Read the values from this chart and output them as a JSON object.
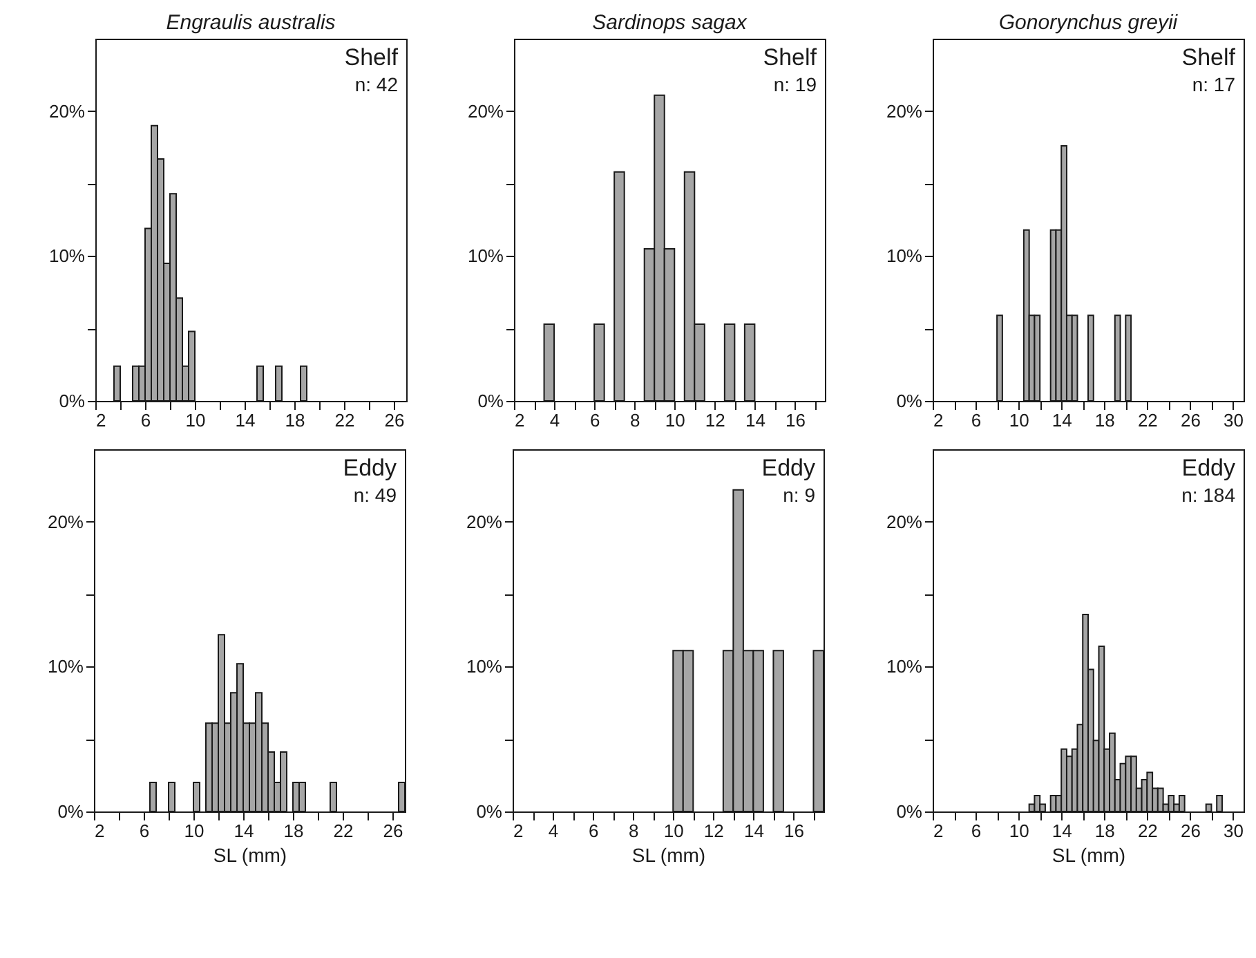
{
  "chart_data": [
    {
      "type": "histogram",
      "title": "Engraulis australis",
      "color": "#a6a6a6",
      "annotations": [
        "Shelf",
        "n: 42"
      ],
      "xlim": [
        2,
        27
      ],
      "ylim": [
        0,
        25
      ],
      "xticks": [
        2,
        {
          "value": 4,
          "label": null
        },
        6,
        {
          "value": 8,
          "label": null
        },
        10,
        {
          "value": 12,
          "label": null
        },
        14,
        {
          "value": 16,
          "label": null
        },
        18,
        {
          "value": 20,
          "label": null
        },
        22,
        {
          "value": 24,
          "label": null
        },
        26
      ],
      "yticks": [
        {
          "value": 0,
          "label": "0%"
        },
        {
          "value": 5,
          "label": null
        },
        {
          "value": 10,
          "label": "10%"
        },
        {
          "value": 15,
          "label": null
        },
        {
          "value": 20,
          "label": "20%"
        }
      ],
      "bins": [
        3.5,
        4,
        4.5,
        5,
        5.5,
        6,
        6.5,
        7,
        7.5,
        8,
        8.5,
        9,
        9.5,
        10,
        10.5,
        11,
        11.5,
        12,
        12.5,
        13,
        13.5,
        14,
        14.5,
        15,
        15.5,
        16,
        16.5,
        17,
        17.5,
        18,
        18.5,
        19
      ],
      "values": [
        2.4,
        0,
        0,
        2.4,
        2.4,
        11.9,
        19.0,
        16.7,
        9.5,
        14.3,
        7.1,
        2.4,
        4.8,
        0,
        0,
        0,
        0,
        0,
        0,
        0,
        0,
        0,
        0,
        2.4,
        0,
        0,
        2.4,
        0,
        0,
        0,
        2.4
      ]
    },
    {
      "type": "histogram",
      "title": "Sardinops sagax",
      "color": "#a6a6a6",
      "annotations": [
        "Shelf",
        "n: 19"
      ],
      "xlim": [
        2,
        17.5
      ],
      "ylim": [
        0,
        25
      ],
      "xticks": [
        2,
        {
          "value": 3,
          "label": null
        },
        4,
        {
          "value": 5,
          "label": null
        },
        6,
        {
          "value": 7,
          "label": null
        },
        8,
        {
          "value": 9,
          "label": null
        },
        10,
        {
          "value": 11,
          "label": null
        },
        12,
        {
          "value": 13,
          "label": null
        },
        14,
        {
          "value": 15,
          "label": null
        },
        16,
        {
          "value": 17,
          "label": null
        }
      ],
      "yticks": [
        {
          "value": 0,
          "label": "0%"
        },
        {
          "value": 5,
          "label": null
        },
        {
          "value": 10,
          "label": "10%"
        },
        {
          "value": 15,
          "label": null
        },
        {
          "value": 20,
          "label": "20%"
        }
      ],
      "bins": [
        3.5,
        4,
        4.5,
        5,
        5.5,
        6,
        6.5,
        7,
        7.5,
        8,
        8.5,
        9,
        9.5,
        10,
        10.5,
        11,
        11.5,
        12,
        12.5,
        13,
        13.5,
        14
      ],
      "values": [
        5.3,
        0,
        0,
        0,
        0,
        5.3,
        0,
        15.8,
        0,
        0,
        10.5,
        21.1,
        10.5,
        0,
        15.8,
        5.3,
        0,
        0,
        5.3,
        0,
        5.3
      ]
    },
    {
      "type": "histogram",
      "title": "Gonorynchus greyii",
      "color": "#a6a6a6",
      "annotations": [
        "Shelf",
        "n: 17"
      ],
      "xlim": [
        2,
        31
      ],
      "ylim": [
        0,
        25
      ],
      "xticks": [
        2,
        {
          "value": 4,
          "label": null
        },
        6,
        {
          "value": 8,
          "label": null
        },
        10,
        {
          "value": 12,
          "label": null
        },
        14,
        {
          "value": 16,
          "label": null
        },
        18,
        {
          "value": 20,
          "label": null
        },
        22,
        {
          "value": 24,
          "label": null
        },
        26,
        {
          "value": 28,
          "label": null
        },
        30
      ],
      "yticks": [
        {
          "value": 0,
          "label": "0%"
        },
        {
          "value": 5,
          "label": null
        },
        {
          "value": 10,
          "label": "10%"
        },
        {
          "value": 15,
          "label": null
        },
        {
          "value": 20,
          "label": "20%"
        }
      ],
      "bins": [
        8,
        8.5,
        9,
        9.5,
        10,
        10.5,
        11,
        11.5,
        12,
        12.5,
        13,
        13.5,
        14,
        14.5,
        15,
        15.5,
        16,
        16.5,
        17,
        17.5,
        18,
        18.5,
        19,
        19.5,
        20,
        20.5
      ],
      "values": [
        5.9,
        0,
        0,
        0,
        0,
        11.8,
        5.9,
        5.9,
        0,
        0,
        11.8,
        11.8,
        17.6,
        5.9,
        5.9,
        0,
        0,
        5.9,
        0,
        0,
        0,
        0,
        5.9,
        0,
        5.9
      ]
    },
    {
      "type": "histogram",
      "xlabel": "SL (mm)",
      "color": "#a6a6a6",
      "annotations": [
        "Eddy",
        "n: 49"
      ],
      "xlim": [
        2,
        27
      ],
      "ylim": [
        0,
        25
      ],
      "xticks": [
        2,
        {
          "value": 4,
          "label": null
        },
        6,
        {
          "value": 8,
          "label": null
        },
        10,
        {
          "value": 12,
          "label": null
        },
        14,
        {
          "value": 16,
          "label": null
        },
        18,
        {
          "value": 20,
          "label": null
        },
        22,
        {
          "value": 24,
          "label": null
        },
        26
      ],
      "yticks": [
        {
          "value": 0,
          "label": "0%"
        },
        {
          "value": 5,
          "label": null
        },
        {
          "value": 10,
          "label": "10%"
        },
        {
          "value": 15,
          "label": null
        },
        {
          "value": 20,
          "label": "20%"
        }
      ],
      "bins": [
        6.5,
        7,
        7.5,
        8,
        8.5,
        9,
        9.5,
        10,
        10.5,
        11,
        11.5,
        12,
        12.5,
        13,
        13.5,
        14,
        14.5,
        15,
        15.5,
        16,
        16.5,
        17,
        17.5,
        18,
        18.5,
        19,
        19.5,
        20,
        20.5,
        21,
        21.5,
        22,
        22.5,
        23,
        23.5,
        24,
        24.5,
        25,
        25.5,
        26,
        26.5,
        27
      ],
      "values": [
        2.0,
        0,
        0,
        2.0,
        0,
        0,
        0,
        2.0,
        0,
        6.1,
        6.1,
        12.2,
        6.1,
        8.2,
        10.2,
        6.1,
        6.1,
        8.2,
        6.1,
        4.1,
        2.0,
        4.1,
        0,
        2.0,
        2.0,
        0,
        0,
        0,
        0,
        2.0,
        0,
        0,
        0,
        0,
        0,
        0,
        0,
        0,
        0,
        0,
        2.0
      ]
    },
    {
      "type": "histogram",
      "xlabel": "SL (mm)",
      "color": "#a6a6a6",
      "annotations": [
        "Eddy",
        "n: 9"
      ],
      "xlim": [
        2,
        17.5
      ],
      "ylim": [
        0,
        25
      ],
      "xticks": [
        2,
        {
          "value": 3,
          "label": null
        },
        4,
        {
          "value": 5,
          "label": null
        },
        6,
        {
          "value": 7,
          "label": null
        },
        8,
        {
          "value": 9,
          "label": null
        },
        10,
        {
          "value": 11,
          "label": null
        },
        12,
        {
          "value": 13,
          "label": null
        },
        14,
        {
          "value": 15,
          "label": null
        },
        16,
        {
          "value": 17,
          "label": null
        }
      ],
      "yticks": [
        {
          "value": 0,
          "label": "0%"
        },
        {
          "value": 5,
          "label": null
        },
        {
          "value": 10,
          "label": "10%"
        },
        {
          "value": 15,
          "label": null
        },
        {
          "value": 20,
          "label": "20%"
        }
      ],
      "bins": [
        10,
        10.5,
        11,
        11.5,
        12,
        12.5,
        13,
        13.5,
        14,
        14.5,
        15,
        15.5,
        16,
        16.5,
        17,
        17.5
      ],
      "values": [
        11.1,
        11.1,
        0,
        0,
        0,
        11.1,
        22.2,
        11.1,
        11.1,
        0,
        11.1,
        0,
        0,
        0,
        11.1
      ]
    },
    {
      "type": "histogram",
      "xlabel": "SL (mm)",
      "color": "#a6a6a6",
      "annotations": [
        "Eddy",
        "n: 184"
      ],
      "xlim": [
        2,
        31
      ],
      "ylim": [
        0,
        25
      ],
      "xticks": [
        2,
        {
          "value": 4,
          "label": null
        },
        6,
        {
          "value": 8,
          "label": null
        },
        10,
        {
          "value": 12,
          "label": null
        },
        14,
        {
          "value": 16,
          "label": null
        },
        18,
        {
          "value": 20,
          "label": null
        },
        22,
        {
          "value": 24,
          "label": null
        },
        26,
        {
          "value": 28,
          "label": null
        },
        30
      ],
      "yticks": [
        {
          "value": 0,
          "label": "0%"
        },
        {
          "value": 5,
          "label": null
        },
        {
          "value": 10,
          "label": "10%"
        },
        {
          "value": 15,
          "label": null
        },
        {
          "value": 20,
          "label": "20%"
        }
      ],
      "bins": [
        11,
        11.5,
        12,
        12.5,
        13,
        13.5,
        14,
        14.5,
        15,
        15.5,
        16,
        16.5,
        17,
        17.5,
        18,
        18.5,
        19,
        19.5,
        20,
        20.5,
        21,
        21.5,
        22,
        22.5,
        23,
        23.5,
        24,
        24.5,
        25,
        25.5,
        26,
        26.5,
        27,
        27.5,
        28,
        28.5,
        29
      ],
      "values": [
        0.5,
        1.1,
        0.5,
        0,
        1.1,
        1.1,
        4.3,
        3.8,
        4.3,
        6.0,
        13.6,
        9.8,
        4.9,
        11.4,
        4.3,
        5.4,
        2.2,
        3.3,
        3.8,
        3.8,
        1.6,
        2.2,
        2.7,
        1.6,
        1.6,
        0.5,
        1.1,
        0.5,
        1.1,
        0,
        0,
        0,
        0,
        0.5,
        0,
        1.1
      ]
    }
  ]
}
